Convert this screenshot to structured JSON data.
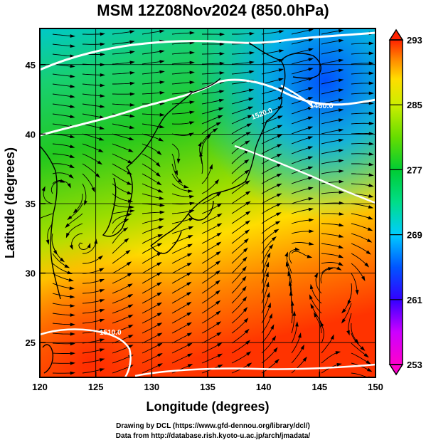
{
  "title": "MSM 12Z08Nov2024 (850.0hPa)",
  "x_axis": {
    "label": "Longitude (degrees)",
    "range": [
      120,
      150
    ],
    "ticks": [
      "120",
      "125",
      "130",
      "135",
      "140",
      "145",
      "150"
    ]
  },
  "y_axis": {
    "label": "Latitude  (degrees)",
    "range": [
      22.5,
      47.6
    ],
    "ticks": [
      "25",
      "30",
      "35",
      "40",
      "45"
    ]
  },
  "colorbar": {
    "ticks": [
      "253",
      "261",
      "269",
      "277",
      "285",
      "293"
    ],
    "range": [
      253,
      293
    ],
    "colors": [
      "#ff00cc",
      "#cc00ff",
      "#3300ff",
      "#0055ff",
      "#00ccff",
      "#00dd88",
      "#00cc33",
      "#66dd00",
      "#ccee00",
      "#ffdd00",
      "#ff8800",
      "#ff2200"
    ]
  },
  "contour_labels": [
    "1460.0",
    "1520.0",
    "1510.0"
  ],
  "credits": {
    "line1": "Drawing by DCL (https://www.gfd-dennou.org/library/dcl/)",
    "line2": "Data from http://database.rish.kyoto-u.ac.jp/arch/jmadata/"
  }
}
